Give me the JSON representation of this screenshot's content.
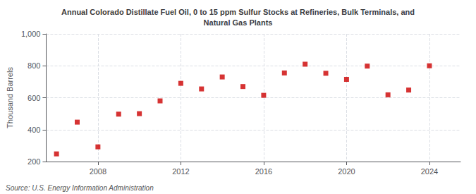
{
  "chart_data": {
    "type": "scatter",
    "title": "Annual Colorado Distillate Fuel Oil, 0 to 15 ppm Sulfur Stocks at Refineries, Bulk Terminals, and\nNatural Gas Plants",
    "ylabel": "Thousand Barrels",
    "annotation": "Source: U.S. Energy Information Administration",
    "x": [
      2006,
      2007,
      2008,
      2009,
      2010,
      2011,
      2012,
      2013,
      2014,
      2015,
      2016,
      2017,
      2018,
      2019,
      2020,
      2021,
      2022,
      2023,
      2024
    ],
    "values": [
      248,
      447,
      292,
      497,
      500,
      580,
      690,
      655,
      730,
      670,
      615,
      755,
      810,
      753,
      715,
      798,
      618,
      648,
      800
    ],
    "color": "#cc0000",
    "marker": "square",
    "xlim": [
      2005.5,
      2025.5
    ],
    "xticks": [
      2008,
      2012,
      2016,
      2020,
      2024
    ],
    "ylim": [
      200,
      1000
    ],
    "yticks": [
      200,
      400,
      600,
      800,
      {
        "value": 1000,
        "label": "1,000"
      }
    ],
    "grid": true
  }
}
